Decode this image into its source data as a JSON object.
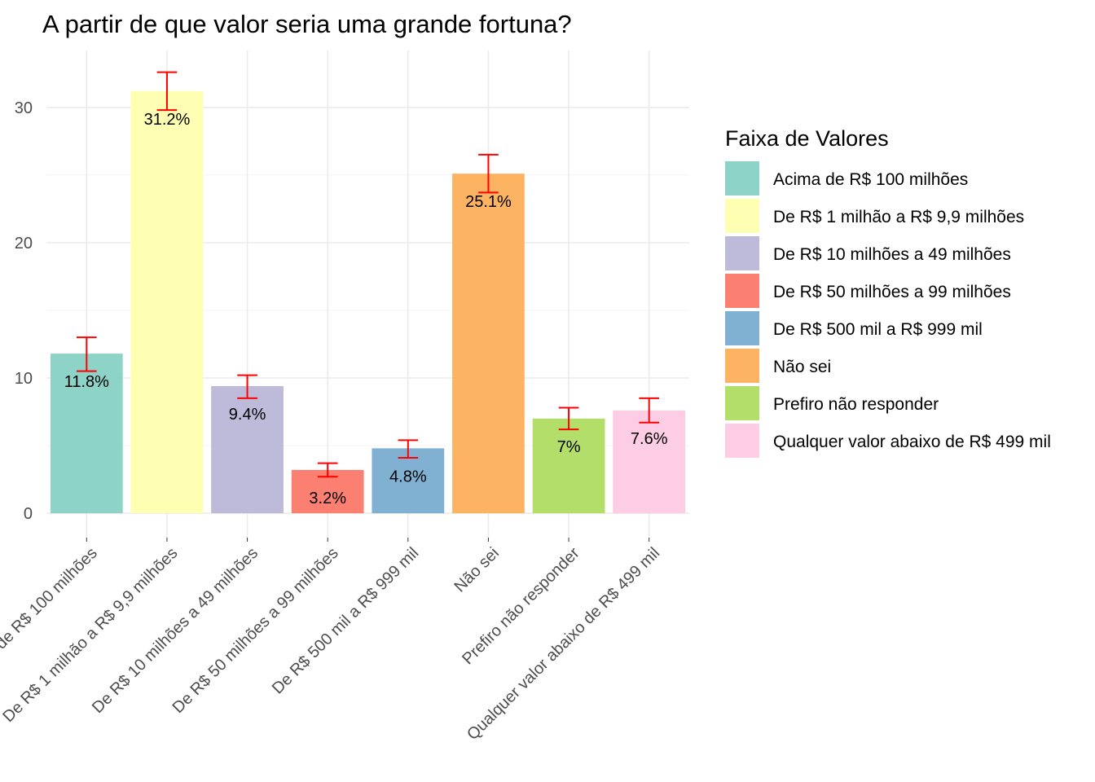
{
  "chart_data": {
    "type": "bar",
    "title": "A partir de que valor seria uma grande fortuna?",
    "xlabel": "",
    "ylabel": "",
    "ylim": [
      -1.8,
      34.2
    ],
    "yticks": [
      0,
      10,
      20,
      30
    ],
    "grid": true,
    "legend_position": "right",
    "legend_title": "Faixa de Valores",
    "categories": [
      "Acima de R$ 100 milhões",
      "De R$ 1 milhão a R$ 9,9 milhões",
      "De R$ 10 milhões a 49 milhões",
      "De R$ 50 milhões a 99 milhões",
      "De R$ 500 mil a R$ 999 mil",
      "Não sei",
      "Prefiro não responder",
      "Qualquer valor abaixo de R$ 499 mil"
    ],
    "values": [
      11.8,
      31.2,
      9.4,
      3.2,
      4.8,
      25.1,
      7,
      7.6
    ],
    "labels": [
      "11.8%",
      "31.2%",
      "9.4%",
      "3.2%",
      "4.8%",
      "25.1%",
      "7%",
      "7.6%"
    ],
    "error_low": [
      10.5,
      29.8,
      8.5,
      2.7,
      4.1,
      23.7,
      6.2,
      6.7
    ],
    "error_high": [
      13.0,
      32.6,
      10.2,
      3.7,
      5.4,
      26.5,
      7.8,
      8.5
    ],
    "colors": [
      "#8dd3c7",
      "#ffffb3",
      "#bebada",
      "#fb8072",
      "#80b1d3",
      "#fdb462",
      "#b3de69",
      "#fccde5"
    ],
    "error_color": "#ff0000"
  }
}
